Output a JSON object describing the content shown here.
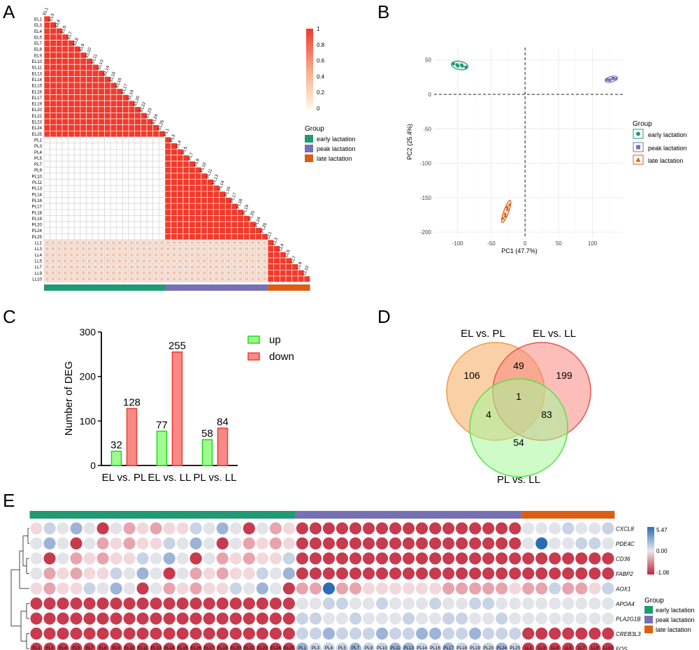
{
  "panels": {
    "A": "A",
    "B": "B",
    "C": "C",
    "D": "D",
    "E": "E"
  },
  "colors": {
    "early": "#1f9a73",
    "peak": "#7670b4",
    "late": "#db5f12",
    "corr_high": "#f03a2c",
    "corr_low": "#fff7e0",
    "up_fill": "#9efb8e",
    "up_stroke": "#27d618",
    "down_fill": "#f98a86",
    "down_stroke": "#ef3a35",
    "venn_pl": "#f6b26a",
    "venn_ll": "#f88880",
    "venn_plll": "#a6f79a",
    "heat_high": "#2a6eb6",
    "heat_mid": "#e8e8ea",
    "heat_low": "#c0263c"
  },
  "group_legend": {
    "title": "Group",
    "items": [
      "early lactation",
      "peak lactation",
      "late lactation"
    ]
  },
  "panelA": {
    "samples_early": [
      "EL1",
      "EL3",
      "EL4",
      "EL5",
      "EL7",
      "EL8",
      "EL9",
      "EL10",
      "EL11",
      "EL13",
      "EL14",
      "EL15",
      "EL16",
      "EL17",
      "EL19",
      "EL20",
      "EL22",
      "EL23",
      "EL24",
      "EL25"
    ],
    "samples_peak": [
      "PL1",
      "PL3",
      "PL4",
      "PL5",
      "PL7",
      "PL9",
      "PL10",
      "PL11",
      "PL13",
      "PL14",
      "PL16",
      "PL17",
      "PL18",
      "PL19",
      "PL20",
      "PL24",
      "PL25"
    ],
    "samples_late": [
      "LL1",
      "LL3",
      "LL4",
      "LL5",
      "LL7",
      "LL9",
      "LL10"
    ],
    "colorbar_ticks": [
      "1",
      "0.8",
      "0.6",
      "0.4",
      "0.2",
      "0"
    ]
  },
  "panelB": {
    "chart_data": {
      "type": "scatter",
      "xlabel": "PC1 (47.7%)",
      "ylabel": "PC2 (25.4%)",
      "xlim": [
        -135,
        145
      ],
      "ylim": [
        -208,
        68
      ],
      "xticks": [
        "-100",
        "-50",
        "0",
        "50",
        "100"
      ],
      "yticks": [
        "50",
        "0",
        "-50",
        "-100",
        "-150",
        "-200"
      ],
      "legend_title": "Group",
      "series": [
        {
          "name": "early lactation",
          "marker": "circle",
          "center": [
            -97,
            42
          ]
        },
        {
          "name": "peak lactation",
          "marker": "square",
          "center": [
            128,
            22
          ]
        },
        {
          "name": "late lactation",
          "marker": "triangle",
          "center": [
            -28,
            -170
          ]
        }
      ]
    }
  },
  "panelC": {
    "chart_data": {
      "type": "bar",
      "categories": [
        "EL vs. PL",
        "EL vs. LL",
        "PL vs. LL"
      ],
      "series": [
        {
          "name": "up",
          "values": [
            32,
            77,
            58
          ]
        },
        {
          "name": "down",
          "values": [
            128,
            255,
            84
          ]
        }
      ],
      "ylabel": "Number of DEG",
      "ylim": [
        0,
        300
      ],
      "yticks": [
        "0",
        "100",
        "200",
        "300"
      ]
    }
  },
  "panelD": {
    "sets": [
      "EL vs. PL",
      "EL vs. LL",
      "PL vs. LL"
    ],
    "counts": {
      "pl_only": "106",
      "ll_only": "199",
      "plll_only": "54",
      "pl_ll": "49",
      "pl_plll": "4",
      "ll_plll": "83",
      "all": "1"
    }
  },
  "panelE": {
    "genes": [
      "CXCL8",
      "PDE4C",
      "CD36",
      "FABP2",
      "AOX1",
      "APOA4",
      "PLA2G1B",
      "CREB3L3",
      "FOS"
    ],
    "colorbar_ticks": [
      "5.47",
      "0.00",
      "-1.08"
    ],
    "columns": [
      "EL1",
      "EL3",
      "EL4",
      "EL5",
      "EL7",
      "EL8",
      "EL9",
      "EL10",
      "EL11",
      "EL13",
      "EL14",
      "EL15",
      "EL16",
      "EL17",
      "EL19",
      "EL20",
      "EL22",
      "EL23",
      "EL24",
      "EL25",
      "PL1",
      "PL3",
      "PL4",
      "PL5",
      "PL7",
      "PL9",
      "PL10",
      "PL11",
      "PL13",
      "PL14",
      "PL16",
      "PL17",
      "PL18",
      "PL19",
      "PL20",
      "PL24",
      "PL25",
      "LL1",
      "LL3",
      "LL4",
      "LL5",
      "LL7",
      "LL9",
      "LL10"
    ]
  }
}
